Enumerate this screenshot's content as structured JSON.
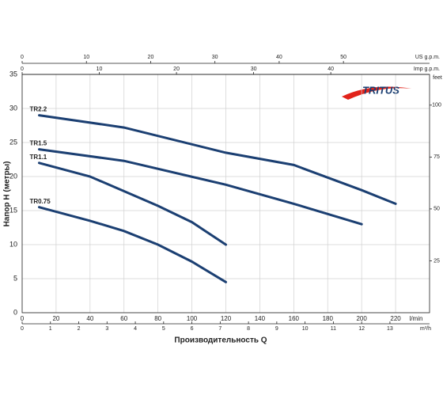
{
  "chart_data": {
    "type": "line",
    "logo": "TRITUS",
    "xlabel": "Производительность Q",
    "ylabel": "Напор H (метры)",
    "x_unit": "l/min",
    "xlim": [
      0,
      240
    ],
    "xticks": [
      0,
      20,
      40,
      60,
      80,
      100,
      120,
      140,
      160,
      180,
      200,
      220
    ],
    "ylim": [
      0,
      35
    ],
    "yticks": [
      0,
      5,
      10,
      15,
      20,
      25,
      30,
      35
    ],
    "grid": true,
    "x2": {
      "label": "m³/h",
      "lim": [
        0,
        14.4
      ],
      "ticks": [
        0,
        1,
        2,
        3,
        4,
        5,
        6,
        7,
        8,
        9,
        10,
        11,
        12,
        13
      ]
    },
    "top_axes": [
      {
        "label": "US g.p.m.",
        "lim": [
          0,
          63.4
        ],
        "ticks": [
          0,
          10,
          20,
          30,
          40,
          50
        ]
      },
      {
        "label": "Imp g.p.m.",
        "lim": [
          0,
          52.8
        ],
        "ticks": [
          0,
          10,
          20,
          30,
          40
        ]
      }
    ],
    "y2": {
      "label": "feet",
      "lim": [
        0,
        114.8
      ],
      "ticks": [
        25,
        50,
        75,
        100
      ]
    },
    "series": [
      {
        "name": "TR2.2",
        "color": "#1b3f72",
        "x": [
          10,
          60,
          120,
          160,
          200,
          220
        ],
        "values": [
          29,
          27.2,
          23.5,
          21.7,
          18,
          16
        ]
      },
      {
        "name": "TR1.5",
        "color": "#1b3f72",
        "x": [
          10,
          60,
          120,
          160,
          200
        ],
        "values": [
          24,
          22.3,
          18.8,
          16,
          13
        ]
      },
      {
        "name": "TR1.1",
        "color": "#1b3f72",
        "x": [
          10,
          40,
          80,
          100,
          120
        ],
        "values": [
          22,
          20,
          15.7,
          13.3,
          10
        ]
      },
      {
        "name": "TR0.75",
        "color": "#1b3f72",
        "x": [
          10,
          40,
          60,
          80,
          100,
          120
        ],
        "values": [
          15.5,
          13.5,
          12,
          10,
          7.5,
          4.5
        ]
      }
    ]
  }
}
